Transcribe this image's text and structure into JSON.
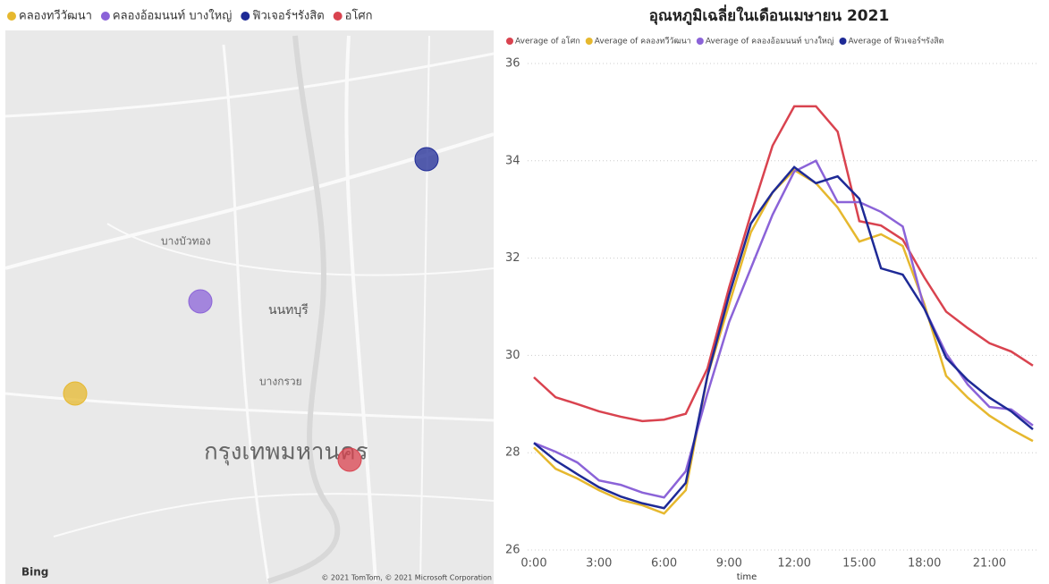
{
  "map": {
    "legend": [
      {
        "name": "คลองทวีวัฒนา",
        "color": "#E6B82E"
      },
      {
        "name": "คลองอ้อมนนท์ บางใหญ่",
        "color": "#8B63D8"
      },
      {
        "name": "ฟิวเจอร์ฯรังสิต",
        "color": "#1E2A96"
      },
      {
        "name": "อโศก",
        "color": "#D9434F"
      }
    ],
    "places": [
      "กรุงเทพมหานคร",
      "นนทบุรี",
      "บางบัวทอง",
      "บางกรวย"
    ],
    "logo": "Bing",
    "attribution": "© 2021 TomTom, © 2021 Microsoft Corporation"
  },
  "chart_data": {
    "type": "line",
    "title": "อุณหภูมิเฉลี่ยในเดือนเมษายน 2021",
    "x_label": "time",
    "x": [
      0,
      1,
      2,
      3,
      4,
      5,
      6,
      7,
      8,
      9,
      10,
      11,
      12,
      13,
      14,
      15,
      16,
      17,
      18,
      19,
      20,
      21,
      22,
      23
    ],
    "xlim": [
      0,
      23
    ],
    "xticks": [
      {
        "value": 0,
        "label": "0:00"
      },
      {
        "value": 3,
        "label": "3:00"
      },
      {
        "value": 6,
        "label": "6:00"
      },
      {
        "value": 9,
        "label": "9:00"
      },
      {
        "value": 12,
        "label": "12:00"
      },
      {
        "value": 15,
        "label": "15:00"
      },
      {
        "value": 18,
        "label": "18:00"
      },
      {
        "value": 21,
        "label": "21:00"
      }
    ],
    "ylim": [
      26,
      36
    ],
    "yticks": [
      26,
      28,
      30,
      32,
      34,
      36
    ],
    "grid": true,
    "series": [
      {
        "name": "Average of อโศก",
        "color": "#D9434F",
        "values": [
          29.55,
          29.14,
          29.0,
          28.85,
          28.74,
          28.65,
          28.68,
          28.8,
          29.73,
          31.4,
          32.9,
          34.31,
          35.12,
          35.12,
          34.6,
          32.76,
          32.67,
          32.38,
          31.6,
          30.9,
          30.56,
          30.25,
          30.08,
          29.79
        ]
      },
      {
        "name": "Average of คลองทวีวัฒนา",
        "color": "#E6B82E",
        "values": [
          28.11,
          27.67,
          27.47,
          27.23,
          27.03,
          26.92,
          26.75,
          27.23,
          29.58,
          31.05,
          32.53,
          33.35,
          33.81,
          33.54,
          33.04,
          32.34,
          32.49,
          32.25,
          31.05,
          29.58,
          29.13,
          28.76,
          28.48,
          28.24
        ]
      },
      {
        "name": "Average of คลองอ้อมนนท์ บางใหญ่",
        "color": "#8B63D8",
        "values": [
          28.2,
          28.02,
          27.8,
          27.43,
          27.34,
          27.18,
          27.08,
          27.62,
          29.22,
          30.69,
          31.79,
          32.89,
          33.78,
          34.0,
          33.15,
          33.15,
          32.95,
          32.65,
          30.96,
          30.04,
          29.4,
          28.94,
          28.89,
          28.56
        ]
      },
      {
        "name": "Average of ฟิวเจอร์ฯรังสิต",
        "color": "#1E2A96",
        "values": [
          28.2,
          27.84,
          27.56,
          27.29,
          27.1,
          26.96,
          26.86,
          27.38,
          29.58,
          31.24,
          32.71,
          33.35,
          33.87,
          33.54,
          33.68,
          33.22,
          31.79,
          31.66,
          30.96,
          29.95,
          29.49,
          29.13,
          28.85,
          28.48
        ]
      }
    ]
  }
}
